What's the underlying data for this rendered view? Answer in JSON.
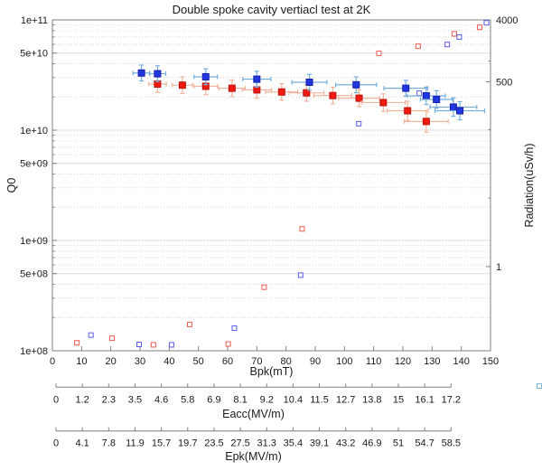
{
  "chart_data": {
    "type": "scatter",
    "title": "Double spoke cavity vertiacl test at 2K",
    "xlabel": "Bpk(mT)",
    "ylabel_left": "Q0",
    "ylabel_right": "Radiation(uSv/h)",
    "grid": true,
    "x_axis": {
      "min": 0,
      "max": 150,
      "tick_values": [
        0,
        10,
        20,
        30,
        40,
        50,
        60,
        70,
        80,
        90,
        100,
        110,
        120,
        130,
        140,
        150
      ],
      "tick_labels": [
        "0",
        "10",
        "20",
        "30",
        "40",
        "50",
        "60",
        "70",
        "80",
        "90",
        "100",
        "110",
        "120",
        "130",
        "140",
        "150"
      ]
    },
    "y_axis_left": {
      "scale": "log",
      "min": 100000000.0,
      "max": 100000000000.0,
      "ticks": [
        {
          "v": 100000000000.0,
          "label": "1e+11"
        },
        {
          "v": 50000000000.0,
          "label": "5e+10"
        },
        {
          "v": 10000000000.0,
          "label": "1e+10"
        },
        {
          "v": 5000000000.0,
          "label": "5e+09"
        },
        {
          "v": 1000000000.0,
          "label": "1e+09"
        },
        {
          "v": 500000000.0,
          "label": "5e+08"
        },
        {
          "v": 100000000.0,
          "label": "1e+08"
        }
      ]
    },
    "y_axis_right": {
      "scale": "log",
      "min": 0.059,
      "max": 4000,
      "ticks": [
        {
          "v": 4000,
          "label": "4000"
        },
        {
          "v": 500,
          "label": "500"
        },
        {
          "v": 1,
          "label": "1"
        }
      ],
      "minor_tick_values": [
        1000,
        100,
        10
      ]
    },
    "eacc_axis": {
      "label": "Eacc(MV/m)",
      "ticks": [
        "0",
        "1.2",
        "2.3",
        "3.5",
        "4.6",
        "5.8",
        "6.9",
        "8.1",
        "9.2",
        "10.4",
        "11.5",
        "12.7",
        "13.8",
        "15",
        "16.1",
        "17.2"
      ]
    },
    "epk_axis": {
      "label": "Epk(MV/m)",
      "ticks": [
        "0",
        "4.1",
        "7.8",
        "11.9",
        "15.7",
        "19.7",
        "23.5",
        "27.5",
        "31.3",
        "35.4",
        "39.1",
        "43.2",
        "46.9",
        "51",
        "54.7",
        "58.5"
      ]
    },
    "series": [
      {
        "name": "cavity-red-radiation",
        "type": "scatter",
        "marker": "open-square",
        "axis": "right",
        "color": "#f05a50",
        "points": [
          {
            "bpk": 8.4,
            "rad": 0.077
          },
          {
            "bpk": 20.4,
            "rad": 0.09
          },
          {
            "bpk": 34.6,
            "rad": 0.072
          },
          {
            "bpk": 47.0,
            "rad": 0.143
          },
          {
            "bpk": 60.2,
            "rad": 0.074
          },
          {
            "bpk": 72.5,
            "rad": 0.5
          },
          {
            "bpk": 85.5,
            "rad": 3.55
          },
          {
            "bpk": 111.8,
            "rad": 1300
          },
          {
            "bpk": 125.2,
            "rad": 1650
          },
          {
            "bpk": 137.6,
            "rad": 2500
          },
          {
            "bpk": 146.3,
            "rad": 3120
          }
        ]
      },
      {
        "name": "cavity-blue-radiation",
        "type": "scatter",
        "marker": "open-square",
        "axis": "right",
        "color": "#5b5bee",
        "points": [
          {
            "bpk": 13.2,
            "rad": 0.1
          },
          {
            "bpk": 29.7,
            "rad": 0.073
          },
          {
            "bpk": 40.8,
            "rad": 0.072
          },
          {
            "bpk": 62.3,
            "rad": 0.126
          },
          {
            "bpk": 85.0,
            "rad": 0.75
          },
          {
            "bpk": 104.9,
            "rad": 122
          },
          {
            "bpk": 125.6,
            "rad": 340
          },
          {
            "bpk": 135.2,
            "rad": 1750
          },
          {
            "bpk": 139.3,
            "rad": 2250
          },
          {
            "bpk": 148.6,
            "rad": 3630
          }
        ]
      },
      {
        "name": "cavity-red-q0",
        "type": "errorbar",
        "marker": "filled-square",
        "axis": "left",
        "color": "#ee1b13",
        "edge_color": "#bb120c",
        "err_color": "#f2b49c",
        "points": [
          {
            "bpk": 36.0,
            "q0": 26200000000.0,
            "xerr": 3.0,
            "yfac": 1.19
          },
          {
            "bpk": 44.5,
            "q0": 25600000000.0,
            "xerr": 3.5,
            "yfac": 1.19
          },
          {
            "bpk": 52.5,
            "q0": 25000000000.0,
            "xerr": 4.0,
            "yfac": 1.19
          },
          {
            "bpk": 61.5,
            "q0": 24000000000.0,
            "xerr": 4.5,
            "yfac": 1.19
          },
          {
            "bpk": 70.0,
            "q0": 23200000000.0,
            "xerr": 5.0,
            "yfac": 1.19
          },
          {
            "bpk": 78.5,
            "q0": 22200000000.0,
            "xerr": 5.5,
            "yfac": 1.19
          },
          {
            "bpk": 87.0,
            "q0": 21800000000.0,
            "xerr": 6.0,
            "yfac": 1.19
          },
          {
            "bpk": 96.0,
            "q0": 20600000000.0,
            "xerr": 6.5,
            "yfac": 1.19
          },
          {
            "bpk": 105.0,
            "q0": 19500000000.0,
            "xerr": 7.0,
            "yfac": 1.19
          },
          {
            "bpk": 113.3,
            "q0": 17800000000.0,
            "xerr": 7.5,
            "yfac": 1.2
          },
          {
            "bpk": 121.6,
            "q0": 15000000000.0,
            "xerr": 7.0,
            "yfac": 1.22
          },
          {
            "bpk": 128.0,
            "q0": 12000000000.0,
            "xerr": 7.5,
            "yfac": 1.25
          }
        ]
      },
      {
        "name": "cavity-blue-q0",
        "type": "errorbar",
        "marker": "filled-square",
        "axis": "left",
        "color": "#2236e0",
        "edge_color": "#141fa8",
        "err_color": "#74aede",
        "points": [
          {
            "bpk": 30.5,
            "q0": 33000000000.0,
            "xerr": 2.9,
            "yfac": 1.18
          },
          {
            "bpk": 36.0,
            "q0": 32500000000.0,
            "xerr": 2.8,
            "yfac": 1.18
          },
          {
            "bpk": 52.5,
            "q0": 30500000000.0,
            "xerr": 4.0,
            "yfac": 1.18
          },
          {
            "bpk": 70.0,
            "q0": 29000000000.0,
            "xerr": 4.8,
            "yfac": 1.18
          },
          {
            "bpk": 88.0,
            "q0": 27200000000.0,
            "xerr": 6.0,
            "yfac": 1.18
          },
          {
            "bpk": 104.0,
            "q0": 25800000000.0,
            "xerr": 7.0,
            "yfac": 1.18
          },
          {
            "bpk": 121.0,
            "q0": 24000000000.0,
            "xerr": 7.5,
            "yfac": 1.18
          },
          {
            "bpk": 128.0,
            "q0": 20500000000.0,
            "xerr": 6.5,
            "yfac": 1.2
          },
          {
            "bpk": 131.5,
            "q0": 19000000000.0,
            "xerr": 5.5,
            "yfac": 1.2
          },
          {
            "bpk": 137.3,
            "q0": 16200000000.0,
            "xerr": 8.0,
            "yfac": 1.21
          },
          {
            "bpk": 139.5,
            "q0": 15000000000.0,
            "xerr": 8.5,
            "yfac": 1.21
          }
        ]
      }
    ],
    "stray_marker": {
      "x": 597,
      "y": 427,
      "color": "#7fb8d8"
    },
    "style": {
      "axis_color": "#7f7f7f",
      "grid_major_color": "#dcdcdc",
      "grid_minor_color": "#d4d4d4",
      "text_color": "#1a1a1a"
    }
  }
}
